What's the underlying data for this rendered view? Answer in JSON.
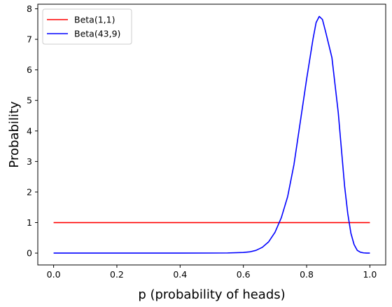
{
  "chart_data": {
    "type": "line",
    "title": "",
    "xlabel": "p (probability of heads)",
    "ylabel": "Probability",
    "xlim": [
      -0.05,
      1.05
    ],
    "ylim": [
      -0.388,
      8.15
    ],
    "xticks": [
      0.0,
      0.2,
      0.4,
      0.6,
      0.8,
      1.0
    ],
    "xtick_labels": [
      "0.0",
      "0.2",
      "0.4",
      "0.6",
      "0.8",
      "1.0"
    ],
    "yticks": [
      0,
      1,
      2,
      3,
      4,
      5,
      6,
      7,
      8
    ],
    "ytick_labels": [
      "0",
      "1",
      "2",
      "3",
      "4",
      "5",
      "6",
      "7",
      "8"
    ],
    "grid": false,
    "legend_position": "top-left",
    "series": [
      {
        "name": "Beta(1,1)",
        "color": "#ff0000",
        "x": [
          0.0,
          1.0
        ],
        "y": [
          1.0,
          1.0
        ]
      },
      {
        "name": "Beta(43,9)",
        "color": "#0000ff",
        "x": [
          0.0,
          0.1,
          0.2,
          0.3,
          0.4,
          0.5,
          0.55,
          0.6,
          0.62,
          0.64,
          0.66,
          0.68,
          0.7,
          0.72,
          0.74,
          0.76,
          0.78,
          0.8,
          0.82,
          0.83,
          0.84,
          0.85,
          0.86,
          0.88,
          0.9,
          0.92,
          0.93,
          0.94,
          0.95,
          0.96,
          0.97,
          0.98,
          0.99,
          1.0
        ],
        "y": [
          0.0,
          0.0,
          0.0,
          0.0,
          0.0,
          0.002,
          0.005,
          0.02,
          0.04,
          0.09,
          0.19,
          0.37,
          0.68,
          1.16,
          1.85,
          2.9,
          4.3,
          5.7,
          7.0,
          7.55,
          7.75,
          7.65,
          7.25,
          6.4,
          4.6,
          2.2,
          1.3,
          0.65,
          0.28,
          0.09,
          0.03,
          0.008,
          0.0,
          0.0
        ]
      }
    ]
  }
}
